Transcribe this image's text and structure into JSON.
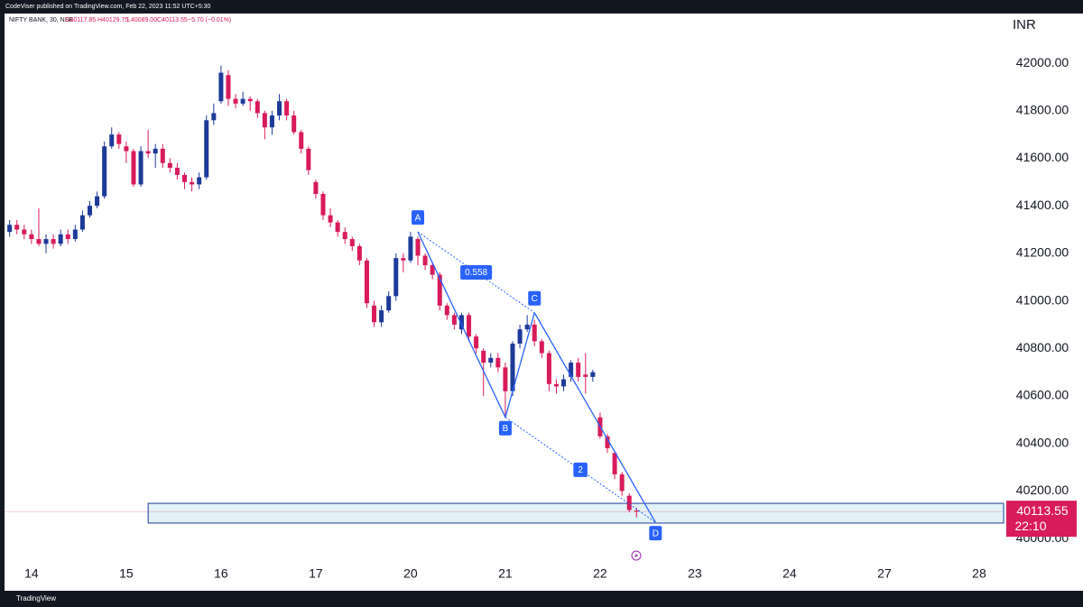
{
  "header": {
    "publisher": "CodeViser published on TradingView.com, Feb 22, 2023 11:52 UTC+5:30",
    "footer": "TradingView"
  },
  "chart_data": {
    "type": "candlestick",
    "symbol": "NIFTY BANK, 30, NSE",
    "ohlc_text": {
      "open": "O40117.85",
      "high": "H40129.75",
      "low": "L40089.00",
      "close": "C40113.55",
      "change": "−5.70 (−0.01%)"
    },
    "currency": "INR",
    "last_price_label": "40113.55",
    "countdown": "22:10",
    "up_color": "#1c3a99",
    "down_color": "#d81b5a",
    "open": [
      41290,
      41320,
      41300,
      41280,
      41260,
      41240,
      41260,
      41240,
      41280,
      41260,
      41300,
      41360,
      41400,
      41440,
      41650,
      41700,
      41650,
      41630,
      41490,
      41630,
      41620,
      41640,
      41580,
      41560,
      41530,
      41500,
      41490,
      41520,
      41760,
      41840,
      41950,
      41850,
      41830,
      41850,
      41840,
      41790,
      41730,
      41780,
      41840,
      41780,
      41710,
      41640,
      41500,
      41450,
      41360,
      41330,
      41290,
      41260,
      41230,
      41170,
      40980,
      40910,
      40960,
      41020,
      41180,
      41170,
      41260,
      41190,
      41150,
      41110,
      40980,
      40940,
      40880,
      40940,
      40850,
      40790,
      40740,
      40760,
      40720,
      40620,
      40820,
      40880,
      40900,
      40830,
      40780,
      40650,
      40640,
      40680,
      40740,
      40690,
      40680,
      40510,
      40430,
      40360,
      40270,
      40180,
      40117.85
    ],
    "high": [
      41340,
      41340,
      41320,
      41300,
      41390,
      41280,
      41280,
      41300,
      41300,
      41320,
      41380,
      41420,
      41460,
      41670,
      41730,
      41710,
      41670,
      41640,
      41650,
      41720,
      41660,
      41660,
      41600,
      41580,
      41540,
      41520,
      41540,
      41780,
      41830,
      41990,
      41970,
      41870,
      41880,
      41860,
      41850,
      41800,
      41800,
      41870,
      41850,
      41800,
      41720,
      41650,
      41510,
      41460,
      41390,
      41340,
      41310,
      41270,
      41240,
      41180,
      41000,
      40980,
      41040,
      41200,
      41200,
      41290,
      41270,
      41200,
      41160,
      41120,
      40990,
      40950,
      40950,
      40950,
      40860,
      40800,
      40780,
      40780,
      40740,
      40830,
      40900,
      40940,
      40920,
      40840,
      40790,
      40670,
      40690,
      40750,
      40760,
      40780,
      40710,
      40530,
      40440,
      40370,
      40280,
      40190,
      40129.75
    ],
    "low": [
      41270,
      41280,
      41260,
      41240,
      41230,
      41200,
      41220,
      41230,
      41240,
      41250,
      41290,
      41350,
      41390,
      41430,
      41640,
      41640,
      41580,
      41480,
      41480,
      41600,
      41560,
      41560,
      41540,
      41510,
      41470,
      41460,
      41470,
      41510,
      41740,
      41830,
      41820,
      41810,
      41820,
      41800,
      41770,
      41680,
      41700,
      41760,
      41760,
      41700,
      41620,
      41530,
      41430,
      41340,
      41310,
      41270,
      41240,
      41210,
      41150,
      40970,
      40890,
      40890,
      40950,
      41000,
      41120,
      41160,
      41150,
      41130,
      41090,
      40960,
      40920,
      40880,
      40860,
      40830,
      40780,
      40600,
      40720,
      40700,
      40510,
      40600,
      40800,
      40870,
      40810,
      40760,
      40620,
      40610,
      40620,
      40660,
      40660,
      40610,
      40660,
      40420,
      40360,
      40250,
      40180,
      40110,
      40089
    ],
    "close": [
      41320,
      41300,
      41280,
      41260,
      41240,
      41260,
      41240,
      41280,
      41260,
      41300,
      41360,
      41400,
      41440,
      41650,
      41700,
      41660,
      41630,
      41490,
      41630,
      41620,
      41640,
      41580,
      41560,
      41530,
      41500,
      41490,
      41520,
      41760,
      41790,
      41960,
      41850,
      41830,
      41850,
      41840,
      41790,
      41730,
      41780,
      41840,
      41780,
      41710,
      41640,
      41550,
      41450,
      41360,
      41330,
      41290,
      41260,
      41230,
      41170,
      40990,
      40910,
      40960,
      41020,
      41180,
      41170,
      41270,
      41190,
      41150,
      41110,
      40980,
      40940,
      40900,
      40940,
      40850,
      40800,
      40740,
      40760,
      40720,
      40620,
      40820,
      40880,
      40900,
      40830,
      40780,
      40650,
      40640,
      40670,
      40740,
      40680,
      40680,
      40700,
      40430,
      40380,
      40270,
      40200,
      40120,
      40113.55
    ],
    "xlim": [
      -0.7,
      136.1
    ],
    "xticks": [
      {
        "value": 3,
        "label": "14"
      },
      {
        "value": 16,
        "label": "15"
      },
      {
        "value": 29,
        "label": "16"
      },
      {
        "value": 42,
        "label": "17"
      },
      {
        "value": 55,
        "label": "20"
      },
      {
        "value": 68,
        "label": "21"
      },
      {
        "value": 81,
        "label": "22"
      },
      {
        "value": 94,
        "label": "23"
      },
      {
        "value": 107,
        "label": "24"
      },
      {
        "value": 120,
        "label": "27"
      },
      {
        "value": 133,
        "label": "28"
      }
    ],
    "ylim": [
      39913,
      42209
    ],
    "yticks": [
      {
        "value": 40000,
        "label": "40000.00"
      },
      {
        "value": 40200,
        "label": "40200.00"
      },
      {
        "value": 40400,
        "label": "40400.00"
      },
      {
        "value": 40600,
        "label": "40600.00"
      },
      {
        "value": 40800,
        "label": "40800.00"
      },
      {
        "value": 41000,
        "label": "41000.00"
      },
      {
        "value": 41200,
        "label": "41200.00"
      },
      {
        "value": 41400,
        "label": "41400.00"
      },
      {
        "value": 41600,
        "label": "41600.00"
      },
      {
        "value": 41800,
        "label": "41800.00"
      },
      {
        "value": 42000,
        "label": "42000.00"
      }
    ],
    "pattern": {
      "color": "#2962ff",
      "points": [
        {
          "label": "A",
          "x": 56,
          "y": 41290
        },
        {
          "label": "B",
          "x": 68,
          "y": 40510
        },
        {
          "label": "C",
          "x": 72,
          "y": 40950
        },
        {
          "label": "D",
          "x": 88.6,
          "y": 40068
        }
      ],
      "ratios": [
        "0.558",
        "2"
      ]
    },
    "zone": {
      "x": 19,
      "y": [
        40065,
        40148
      ],
      "color": "#1c3a99"
    }
  }
}
